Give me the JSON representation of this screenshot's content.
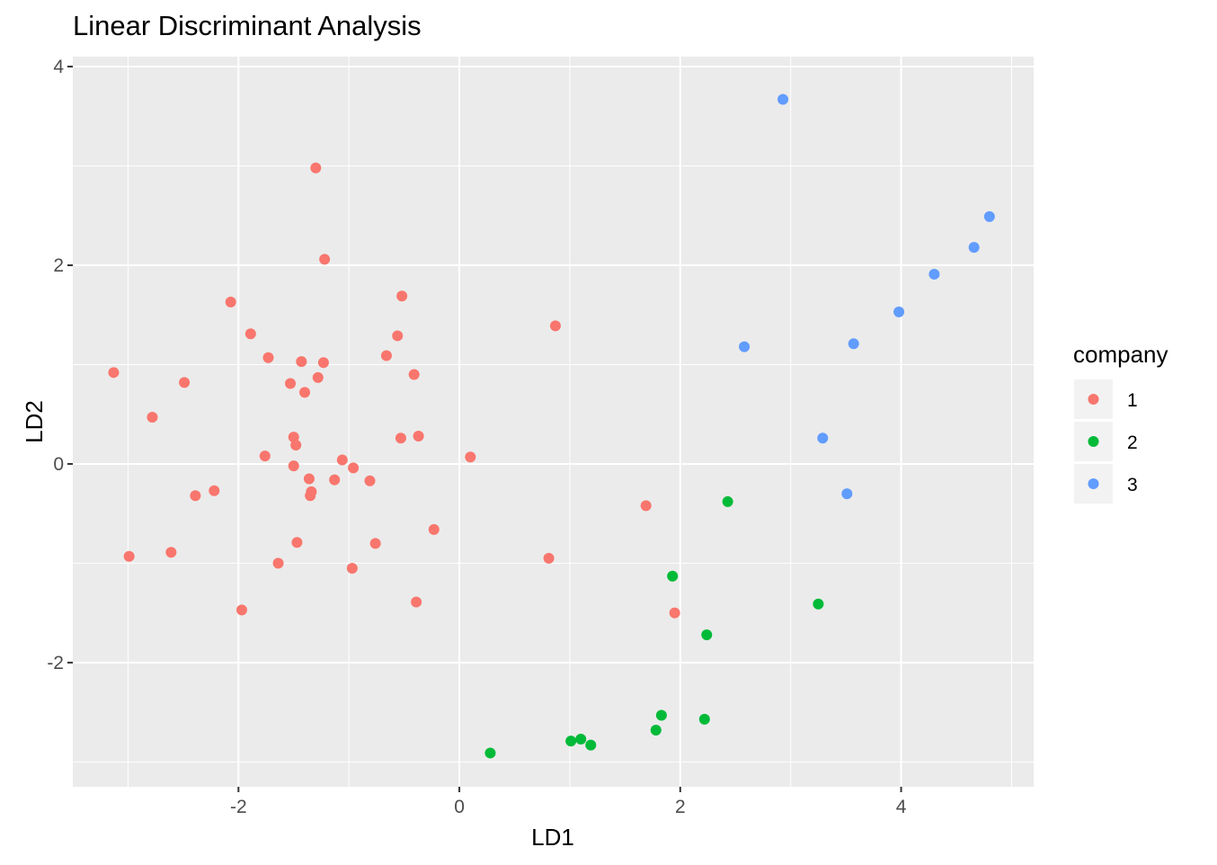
{
  "chart_data": {
    "type": "scatter",
    "title": "Linear Discriminant Analysis",
    "xlabel": "LD1",
    "ylabel": "LD2",
    "xlim": [
      -3.5,
      5.2
    ],
    "ylim": [
      -3.25,
      4.1
    ],
    "xticks": [
      -2,
      0,
      2,
      4
    ],
    "yticks": [
      -2,
      0,
      2,
      4
    ],
    "x_tick_labels": [
      "-2",
      "0",
      "2",
      "4"
    ],
    "y_tick_labels": [
      "-2",
      "0",
      "2",
      "4"
    ],
    "grid": true,
    "panel_background": "#ebebeb",
    "legend": {
      "title": "company",
      "position": "right",
      "entries": [
        "1",
        "2",
        "3"
      ]
    },
    "series": [
      {
        "name": "1",
        "color": "#f8766d",
        "points": [
          [
            -1.3,
            2.98
          ],
          [
            -1.22,
            2.06
          ],
          [
            -2.07,
            1.63
          ],
          [
            -0.52,
            1.69
          ],
          [
            0.87,
            1.39
          ],
          [
            -1.89,
            1.31
          ],
          [
            -0.56,
            1.29
          ],
          [
            -1.73,
            1.07
          ],
          [
            -0.66,
            1.09
          ],
          [
            -1.43,
            1.03
          ],
          [
            -1.23,
            1.02
          ],
          [
            -3.13,
            0.92
          ],
          [
            -0.41,
            0.9
          ],
          [
            -1.28,
            0.87
          ],
          [
            -2.49,
            0.82
          ],
          [
            -1.53,
            0.81
          ],
          [
            -1.4,
            0.72
          ],
          [
            -2.78,
            0.47
          ],
          [
            -1.5,
            0.27
          ],
          [
            -0.53,
            0.26
          ],
          [
            -0.37,
            0.28
          ],
          [
            -1.48,
            0.19
          ],
          [
            -1.76,
            0.08
          ],
          [
            0.1,
            0.07
          ],
          [
            -1.06,
            0.04
          ],
          [
            -1.5,
            -0.02
          ],
          [
            -0.96,
            -0.04
          ],
          [
            -1.36,
            -0.15
          ],
          [
            -1.13,
            -0.16
          ],
          [
            -0.81,
            -0.17
          ],
          [
            -1.34,
            -0.28
          ],
          [
            -1.35,
            -0.32
          ],
          [
            -2.22,
            -0.27
          ],
          [
            -2.39,
            -0.32
          ],
          [
            -0.23,
            -0.66
          ],
          [
            -2.99,
            -0.93
          ],
          [
            -2.61,
            -0.89
          ],
          [
            -1.47,
            -0.79
          ],
          [
            -0.76,
            -0.8
          ],
          [
            -1.64,
            -1.0
          ],
          [
            -0.97,
            -1.05
          ],
          [
            -0.39,
            -1.39
          ],
          [
            -1.97,
            -1.47
          ],
          [
            1.69,
            -0.42
          ],
          [
            0.81,
            -0.95
          ],
          [
            1.95,
            -1.5
          ]
        ]
      },
      {
        "name": "2",
        "color": "#00ba38",
        "points": [
          [
            2.43,
            -0.38
          ],
          [
            1.93,
            -1.13
          ],
          [
            3.25,
            -1.41
          ],
          [
            2.24,
            -1.72
          ],
          [
            1.83,
            -2.53
          ],
          [
            2.22,
            -2.57
          ],
          [
            1.78,
            -2.68
          ],
          [
            1.1,
            -2.77
          ],
          [
            1.01,
            -2.79
          ],
          [
            1.19,
            -2.83
          ],
          [
            0.28,
            -2.91
          ]
        ]
      },
      {
        "name": "3",
        "color": "#619cff",
        "points": [
          [
            2.93,
            3.67
          ],
          [
            4.8,
            2.49
          ],
          [
            4.66,
            2.18
          ],
          [
            4.3,
            1.91
          ],
          [
            3.98,
            1.53
          ],
          [
            3.57,
            1.21
          ],
          [
            2.58,
            1.18
          ],
          [
            3.29,
            0.26
          ],
          [
            3.51,
            -0.3
          ]
        ]
      }
    ]
  }
}
